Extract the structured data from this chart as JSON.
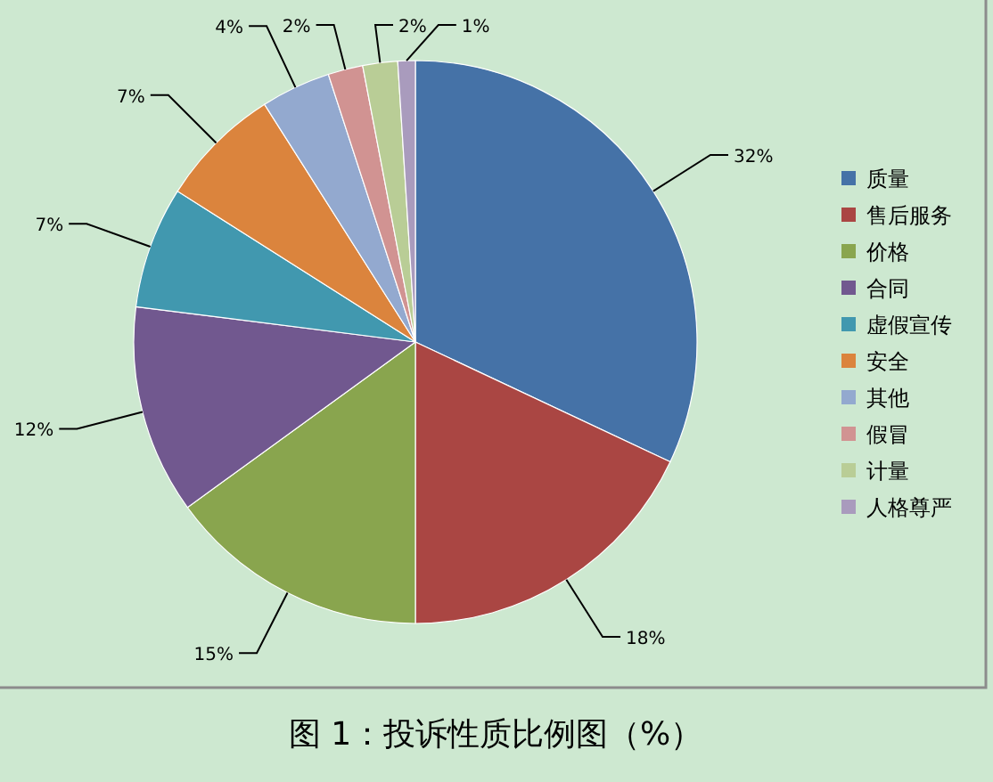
{
  "chart_data": {
    "type": "pie",
    "title": "图 1：投诉性质比例图（%）",
    "categories": [
      "质量",
      "售后服务",
      "价格",
      "合同",
      "虚假宣传",
      "安全",
      "其他",
      "假冒",
      "计量",
      "人格尊严"
    ],
    "values": [
      32,
      18,
      15,
      12,
      7,
      7,
      4,
      2,
      2,
      1
    ],
    "colors": [
      "#4572a7",
      "#aa4643",
      "#89a54e",
      "#71588f",
      "#4198af",
      "#db843d",
      "#93a9cf",
      "#d19392",
      "#b9cd96",
      "#a99bbd"
    ],
    "value_labels": [
      "32%",
      "18%",
      "15%",
      "12%",
      "7%",
      "7%",
      "4%",
      "2%",
      "2%",
      "1%"
    ],
    "legend": "right"
  }
}
